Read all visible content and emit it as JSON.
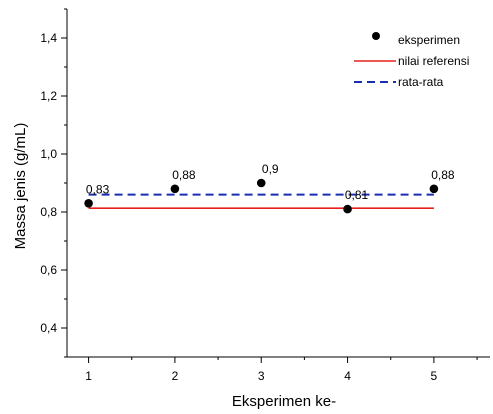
{
  "chart_data": {
    "type": "scatter",
    "xlabel": "Eksperimen ke-",
    "ylabel": "Massa jenis (g/mL)",
    "xlim": [
      0.75,
      5.65
    ],
    "ylim": [
      0.3,
      1.5
    ],
    "x_ticks": [
      1,
      2,
      3,
      4,
      5
    ],
    "x_tick_labels": [
      "1",
      "2",
      "3",
      "4",
      "5"
    ],
    "y_ticks": [
      0.4,
      0.6,
      0.8,
      1.0,
      1.2,
      1.4
    ],
    "y_tick_labels": [
      "0,4",
      "0,6",
      "0,8",
      "1,0",
      "1,2",
      "1,4"
    ],
    "grid": false,
    "legend_position": "top-right",
    "series": [
      {
        "name": "eksperimen",
        "kind": "scatter",
        "color": "#000000",
        "x": [
          1,
          2,
          3,
          4,
          5
        ],
        "y": [
          0.83,
          0.88,
          0.9,
          0.81,
          0.88
        ],
        "labels": [
          "0,83",
          "0,88",
          "0,9",
          "0,81",
          "0,88"
        ]
      },
      {
        "name": "nilai referensi",
        "kind": "line",
        "style": "solid",
        "color": "#e8201c",
        "x": [
          1,
          5
        ],
        "y": [
          0.813,
          0.813
        ]
      },
      {
        "name": "rata-rata",
        "kind": "line",
        "style": "dashed",
        "color": "#1a2fb0",
        "x": [
          1,
          5
        ],
        "y": [
          0.86,
          0.86
        ]
      }
    ]
  }
}
